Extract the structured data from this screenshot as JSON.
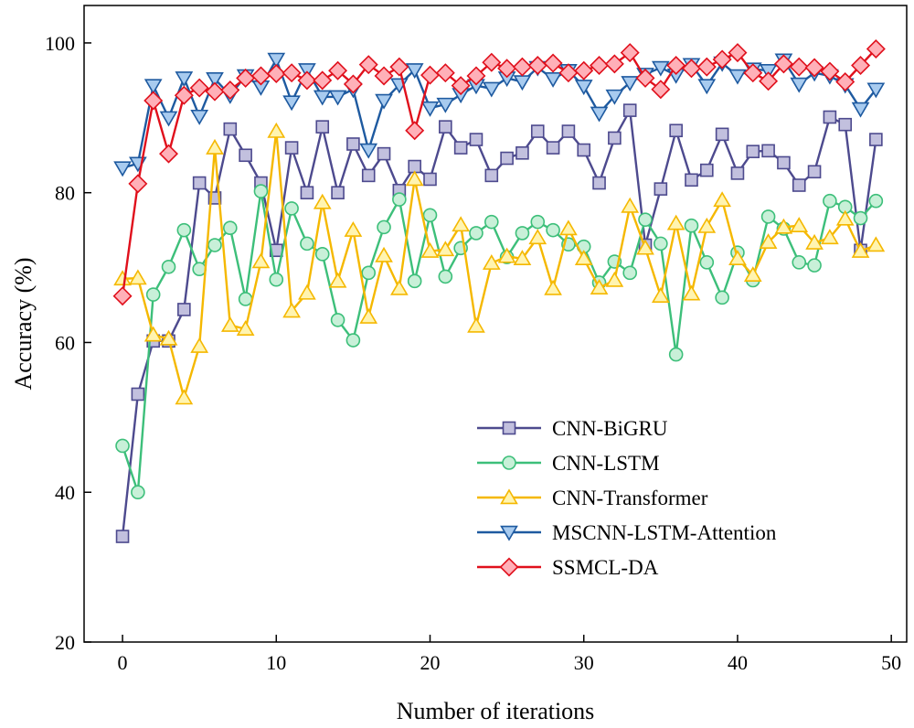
{
  "chart_data": {
    "type": "line",
    "title": "",
    "xlabel": "Number of iterations",
    "ylabel": "Accuracy (%)",
    "xlim": [
      -2.5,
      51
    ],
    "ylim": [
      20,
      105
    ],
    "xticks": [
      0,
      10,
      20,
      30,
      40,
      50
    ],
    "yticks": [
      20,
      40,
      60,
      80,
      100
    ],
    "grid": false,
    "legend_position": "bottom-right",
    "x": [
      0,
      1,
      2,
      3,
      4,
      5,
      6,
      7,
      8,
      9,
      10,
      11,
      12,
      13,
      14,
      15,
      16,
      17,
      18,
      19,
      20,
      21,
      22,
      23,
      24,
      25,
      26,
      27,
      28,
      29,
      30,
      31,
      32,
      33,
      34,
      35,
      36,
      37,
      38,
      39,
      40,
      41,
      42,
      43,
      44,
      45,
      46,
      47,
      48,
      49
    ],
    "series": [
      {
        "name": "CNN-BiGRU",
        "color": "#4d4a8e",
        "fill": "#c2c0de",
        "marker": "square",
        "values": [
          34.1,
          53.1,
          60.2,
          60.2,
          64.4,
          81.3,
          79.3,
          88.5,
          85.0,
          81.3,
          72.3,
          86.0,
          80.0,
          88.8,
          80.0,
          86.5,
          82.3,
          85.2,
          80.3,
          83.5,
          81.8,
          88.8,
          86.0,
          87.1,
          82.3,
          84.6,
          85.3,
          88.2,
          86.0,
          88.2,
          85.7,
          81.3,
          87.3,
          91.0,
          73.0,
          80.5,
          88.3,
          81.7,
          83.0,
          87.8,
          82.6,
          85.5,
          85.6,
          84.0,
          81.0,
          82.8,
          90.1,
          89.1,
          72.3,
          87.1
        ]
      },
      {
        "name": "CNN-LSTM",
        "color": "#3dbf7a",
        "fill": "#c8f0d8",
        "marker": "circle",
        "values": [
          46.2,
          40.0,
          66.4,
          70.1,
          75.0,
          69.8,
          73.0,
          75.3,
          65.8,
          80.2,
          68.4,
          77.9,
          73.2,
          71.8,
          63.0,
          60.3,
          69.3,
          75.4,
          79.1,
          68.2,
          77.0,
          68.8,
          72.6,
          74.6,
          76.1,
          71.4,
          74.6,
          76.1,
          75.0,
          73.1,
          72.8,
          68.0,
          70.8,
          69.3,
          76.4,
          73.2,
          58.4,
          75.6,
          70.7,
          66.0,
          72.0,
          68.3,
          76.8,
          75.2,
          70.7,
          70.3,
          78.9,
          78.1,
          76.6,
          78.9
        ]
      },
      {
        "name": "CNN-Transformer",
        "color": "#f5b800",
        "fill": "#fff4b0",
        "marker": "triangle-up",
        "values": [
          68.5,
          68.6,
          61.0,
          60.5,
          52.6,
          59.5,
          86.0,
          62.3,
          61.8,
          70.8,
          88.2,
          64.2,
          66.6,
          78.7,
          68.2,
          75.0,
          63.4,
          71.6,
          67.2,
          81.8,
          72.2,
          72.4,
          75.7,
          62.2,
          70.6,
          71.5,
          71.2,
          74.0,
          67.2,
          75.2,
          71.2,
          67.3,
          68.3,
          78.2,
          72.6,
          66.2,
          75.9,
          66.5,
          75.5,
          79.0,
          71.2,
          69.0,
          73.4,
          75.4,
          75.6,
          73.3,
          74.0,
          76.5,
          72.2,
          73.0
        ]
      },
      {
        "name": "MSCNN-LSTM-Attention",
        "color": "#1e5aa0",
        "fill": "#a8cbef",
        "marker": "triangle-down",
        "values": [
          83.3,
          83.9,
          94.3,
          90.0,
          95.3,
          90.2,
          95.2,
          93.0,
          95.6,
          94.1,
          97.8,
          92.1,
          96.4,
          92.8,
          92.8,
          93.8,
          85.7,
          92.3,
          94.4,
          96.4,
          91.3,
          91.8,
          93.1,
          94.3,
          93.9,
          95.3,
          94.8,
          96.7,
          95.2,
          96.3,
          94.2,
          90.6,
          92.9,
          94.7,
          95.8,
          96.7,
          95.7,
          97.1,
          94.3,
          97.3,
          95.6,
          96.5,
          96.3,
          97.7,
          94.5,
          96.0,
          95.6,
          94.4,
          91.2,
          93.8
        ]
      },
      {
        "name": "SSMCL-DA",
        "color": "#e0101c",
        "fill": "#ffb0b8",
        "marker": "diamond",
        "values": [
          66.2,
          81.2,
          92.3,
          85.2,
          93.0,
          94.0,
          93.5,
          93.7,
          95.3,
          95.6,
          95.9,
          96.0,
          95.0,
          95.0,
          96.3,
          94.5,
          97.1,
          95.6,
          96.8,
          88.3,
          95.7,
          96.0,
          94.3,
          95.6,
          97.4,
          96.6,
          96.8,
          97.0,
          97.3,
          96.0,
          96.3,
          97.0,
          97.2,
          98.7,
          95.3,
          93.8,
          97.0,
          96.6,
          96.8,
          97.8,
          98.7,
          96.0,
          94.9,
          97.2,
          96.8,
          96.7,
          96.2,
          94.8,
          97.0,
          99.2
        ]
      }
    ]
  }
}
